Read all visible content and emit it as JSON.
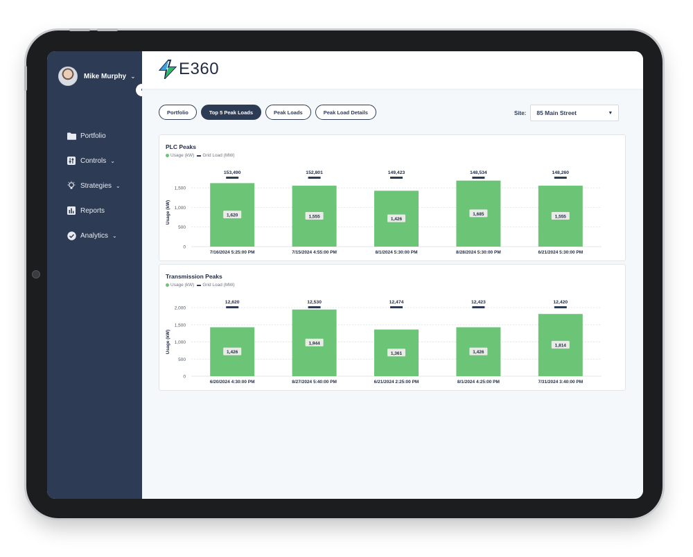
{
  "user": {
    "name": "Mike Murphy"
  },
  "sidebar": {
    "items": [
      {
        "label": "Portfolio",
        "icon": "folder-icon",
        "caret": false
      },
      {
        "label": "Controls",
        "icon": "sliders-icon",
        "caret": true
      },
      {
        "label": "Strategies",
        "icon": "lightbulb-icon",
        "caret": true
      },
      {
        "label": "Reports",
        "icon": "bar-chart-icon",
        "caret": false
      },
      {
        "label": "Analytics",
        "icon": "check-circle-icon",
        "caret": true
      }
    ]
  },
  "logo": {
    "text": "E360"
  },
  "tabs": [
    {
      "label": "Portfolio",
      "active": false
    },
    {
      "label": "Top 5 Peak Loads",
      "active": true
    },
    {
      "label": "Peak Loads",
      "active": false
    },
    {
      "label": "Peak Load Details",
      "active": false
    }
  ],
  "site": {
    "label": "Site:",
    "value": "85 Main Street"
  },
  "colors": {
    "sidebar": "#2d3b55",
    "bar": "#6cc476",
    "grid_marker": "#2d3b55"
  },
  "chart_data": [
    {
      "type": "bar",
      "title": "PLC Peaks",
      "legend": [
        "Usage (kW)",
        "Grid Load (MW)"
      ],
      "ylabel": "Usage (kW)",
      "ylim": [
        0,
        1750
      ],
      "yticks": [
        0,
        500,
        1000,
        1500
      ],
      "ytick_labels": [
        "0",
        "500",
        "1,000",
        "1,500"
      ],
      "categories": [
        "7/16/2024 5:25:00 PM",
        "7/15/2024 4:55:00 PM",
        "8/1/2024 5:30:00 PM",
        "8/28/2024 5:30:00 PM",
        "6/21/2024 5:30:00 PM"
      ],
      "series": [
        {
          "name": "Usage (kW)",
          "values": [
            1620,
            1555,
            1426,
            1685,
            1555
          ],
          "labels": [
            "1,620",
            "1,555",
            "1,426",
            "1,685",
            "1,555"
          ]
        },
        {
          "name": "Grid Load (MW)",
          "values": [
            153490,
            152801,
            149423,
            148534,
            148260
          ],
          "labels": [
            "153,490",
            "152,801",
            "149,423",
            "148,534",
            "148,260"
          ]
        }
      ]
    },
    {
      "type": "bar",
      "title": "Transmission Peaks",
      "legend": [
        "Usage (kW)",
        "Grid Load (MW)"
      ],
      "ylabel": "Usage (kW)",
      "ylim": [
        0,
        2000
      ],
      "yticks": [
        0,
        500,
        1000,
        1500,
        2000
      ],
      "ytick_labels": [
        "0",
        "500",
        "1,000",
        "1,500",
        "2,000"
      ],
      "categories": [
        "6/20/2024 4:30:00 PM",
        "8/27/2024 5:40:00 PM",
        "6/21/2024 2:25:00 PM",
        "8/1/2024 4:25:00 PM",
        "7/31/2024 3:40:00 PM"
      ],
      "series": [
        {
          "name": "Usage (kW)",
          "values": [
            1426,
            1944,
            1361,
            1426,
            1814
          ],
          "labels": [
            "1,426",
            "1,944",
            "1,361",
            "1,426",
            "1,814"
          ]
        },
        {
          "name": "Grid Load (MW)",
          "values": [
            12620,
            12530,
            12474,
            12423,
            12420
          ],
          "labels": [
            "12,620",
            "12,530",
            "12,474",
            "12,423",
            "12,420"
          ]
        }
      ]
    }
  ]
}
